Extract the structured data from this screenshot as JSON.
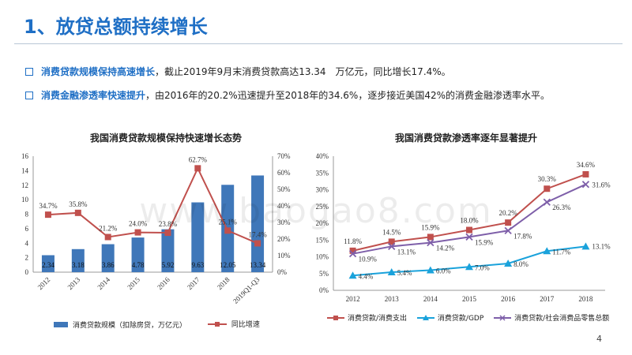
{
  "slide": {
    "title": "1、放贷总额持续增长",
    "page_number": "4",
    "watermark": "www.baogao8.com"
  },
  "bullets": [
    {
      "highlight": "消费贷款规模保持高速增长",
      "text": "，截止2019年9月末消费贷款高达13.34　万亿元，同比增长17.4%。"
    },
    {
      "highlight": "消费金融渗透率快速提升",
      "text": "，由2016年的20.2%迅速提升至2018年的34.6%，逐步接近美国42%的消费金融渗透率水平。"
    }
  ],
  "colors": {
    "title": "#1f6fc5",
    "bar": "#3f77b9",
    "red": "#c0504d",
    "cyan": "#1aa2db",
    "purple": "#7e5fa9"
  },
  "chart_data": [
    {
      "type": "bar",
      "title": "我国消费贷款规模保持快速增长态势",
      "categories": [
        "2012",
        "2013",
        "2014",
        "2015",
        "2016",
        "2017",
        "2018",
        "2019Q1-Q3"
      ],
      "series": [
        {
          "name": "消费贷款规模（扣除房贷，万亿元）",
          "type": "bar",
          "axis": "left",
          "values": [
            2.34,
            3.18,
            3.86,
            4.78,
            5.92,
            9.63,
            12.05,
            13.34
          ],
          "labels": [
            "2.34",
            "3.18",
            "3.86",
            "4.78",
            "5.92",
            "9.63",
            "12.05",
            "13.34"
          ]
        },
        {
          "name": "同比增速",
          "type": "line",
          "axis": "right",
          "values": [
            34.7,
            35.8,
            21.2,
            24.0,
            23.8,
            62.7,
            25.1,
            17.4
          ],
          "labels": [
            "34.7%",
            "35.8%",
            "21.2%",
            "24.0%",
            "23.8%",
            "62.7%",
            "25.1%",
            "17.4%"
          ]
        }
      ],
      "ylim_left": [
        0,
        16
      ],
      "yticks_left": [
        "0",
        "2",
        "4",
        "6",
        "8",
        "10",
        "12",
        "14",
        "16"
      ],
      "ylim_right": [
        0,
        70
      ],
      "yticks_right": [
        "0%",
        "10%",
        "20%",
        "30%",
        "40%",
        "50%",
        "60%",
        "70%"
      ],
      "grid": false,
      "legend": "bottom"
    },
    {
      "type": "line",
      "title": "我国消费贷款渗透率逐年显著提升",
      "categories": [
        "2012",
        "2013",
        "2014",
        "2015",
        "2016",
        "2017",
        "2018"
      ],
      "series": [
        {
          "name": "消费贷款/消费支出",
          "values": [
            11.8,
            14.5,
            15.9,
            18.0,
            20.2,
            30.3,
            34.6
          ],
          "labels": [
            "11.8%",
            "14.5%",
            "15.9%",
            "18.0%",
            "20.2%",
            "30.3%",
            "34.6%"
          ]
        },
        {
          "name": "消费贷款/GDP",
          "values": [
            4.4,
            5.4,
            6.0,
            7.0,
            8.0,
            11.7,
            13.1
          ],
          "labels": [
            "4.4%",
            "5.4%",
            "6.0%",
            "7.0%",
            "8.0%",
            "11.7%",
            "13.1%"
          ]
        },
        {
          "name": "消费贷款/社会消费品零售总额",
          "values": [
            10.9,
            13.1,
            14.2,
            15.9,
            17.8,
            26.3,
            31.6
          ],
          "labels": [
            "10.9%",
            "13.1%",
            "14.2%",
            "15.9%",
            "17.8%",
            "26.3%",
            "31.6%"
          ]
        }
      ],
      "ylim": [
        0,
        40
      ],
      "yticks": [
        "0%",
        "5%",
        "10%",
        "15%",
        "20%",
        "25%",
        "30%",
        "35%",
        "40%"
      ],
      "grid": false,
      "legend": "bottom"
    }
  ]
}
